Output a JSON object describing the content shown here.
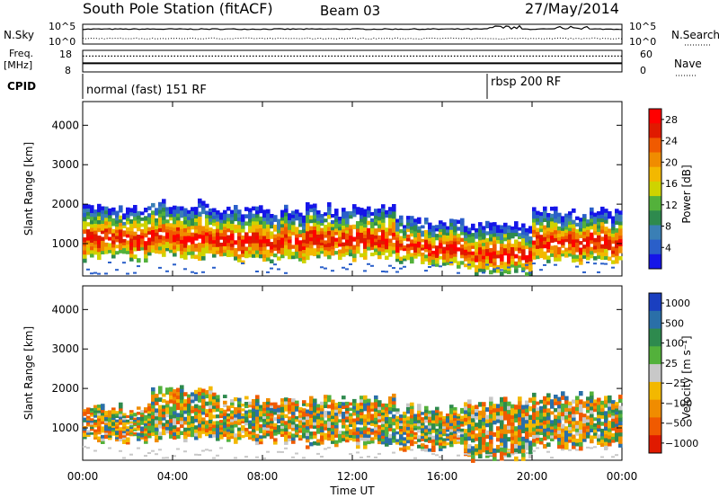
{
  "header": {
    "station": "South Pole Station (fitACF)",
    "beam": "Beam 03",
    "date": "27/May/2014"
  },
  "noise_panel": {
    "left_label": "N.Sky",
    "right_label": "N.Search",
    "tick_top": "10^5",
    "tick_bottom": "10^0",
    "sky_level_log": 3.9,
    "search_level_log": 1.3
  },
  "freq_panel": {
    "left_label_line1": "Freq.",
    "left_label_line2": "[MHz]",
    "right_label": "Nave",
    "left_ticks": [
      "18",
      "8"
    ],
    "right_ticks": [
      "60",
      "0"
    ],
    "freq_mhz": 12.0,
    "nave": 44
  },
  "cpid": {
    "label": "CPID",
    "modes": [
      {
        "name": "normal (fast) 151 RF",
        "start_hour": 0
      },
      {
        "name": "rbsp 200 RF",
        "start_hour": 18
      }
    ]
  },
  "x_axis": {
    "label": "Time UT",
    "ticks": [
      "00:00",
      "04:00",
      "08:00",
      "12:00",
      "16:00",
      "20:00",
      "00:00"
    ],
    "range_hours": [
      0,
      24
    ]
  },
  "chart_data": [
    {
      "type": "heatmap",
      "ylabel": "Slant Range [km]",
      "yticks": [
        "1000",
        "2000",
        "3000",
        "4000"
      ],
      "ylim": [
        180,
        4600
      ],
      "xlabel": "",
      "colorbar": {
        "label": "Power [dB]",
        "ticks": [
          "4",
          "8",
          "12",
          "16",
          "20",
          "24",
          "28"
        ],
        "range": [
          0,
          30
        ],
        "colors": [
          "#1515e8",
          "#2a5fc9",
          "#3a7fb5",
          "#2e8a4e",
          "#53b13b",
          "#cfd300",
          "#f3b800",
          "#f08c00",
          "#f05a00",
          "#e01a00",
          "#ff0000"
        ]
      },
      "bands": [
        {
          "t0": 0.0,
          "t1": 3.0,
          "low": 650,
          "high": 1900
        },
        {
          "t0": 3.0,
          "t1": 6.0,
          "low": 700,
          "high": 2000
        },
        {
          "t0": 6.0,
          "t1": 10.0,
          "low": 600,
          "high": 1850
        },
        {
          "t0": 10.0,
          "t1": 14.0,
          "low": 650,
          "high": 1900
        },
        {
          "t0": 14.0,
          "t1": 17.0,
          "low": 500,
          "high": 1600
        },
        {
          "t0": 17.0,
          "t1": 20.0,
          "low": 300,
          "high": 1500
        },
        {
          "t0": 20.0,
          "t1": 24.0,
          "low": 600,
          "high": 1800
        }
      ]
    },
    {
      "type": "heatmap",
      "ylabel": "Slant Range [km]",
      "yticks": [
        "1000",
        "2000",
        "3000",
        "4000"
      ],
      "ylim": [
        180,
        4600
      ],
      "xlabel": "Time UT",
      "colorbar": {
        "label": "Velocity [m s⁻¹]",
        "ticks": [
          "1000",
          "500",
          "100",
          "25",
          "−25",
          "−100",
          "−500",
          "−1000"
        ],
        "range": [
          -1200,
          1200
        ],
        "colors": [
          "#e01a00",
          "#f05a00",
          "#f08c00",
          "#f3b800",
          "#c8c8c8",
          "#53b13b",
          "#2e8a4e",
          "#2a6fa8",
          "#1a3fc0"
        ]
      },
      "bands": [
        {
          "t0": 0.0,
          "t1": 3.0,
          "low": 700,
          "high": 1500
        },
        {
          "t0": 3.0,
          "t1": 6.0,
          "low": 750,
          "high": 2000
        },
        {
          "t0": 6.0,
          "t1": 10.0,
          "low": 700,
          "high": 1700
        },
        {
          "t0": 10.0,
          "t1": 14.0,
          "low": 600,
          "high": 1750
        },
        {
          "t0": 14.0,
          "t1": 17.0,
          "low": 500,
          "high": 1500
        },
        {
          "t0": 17.0,
          "t1": 20.0,
          "low": 250,
          "high": 1700
        },
        {
          "t0": 20.0,
          "t1": 24.0,
          "low": 550,
          "high": 1800
        }
      ]
    }
  ]
}
